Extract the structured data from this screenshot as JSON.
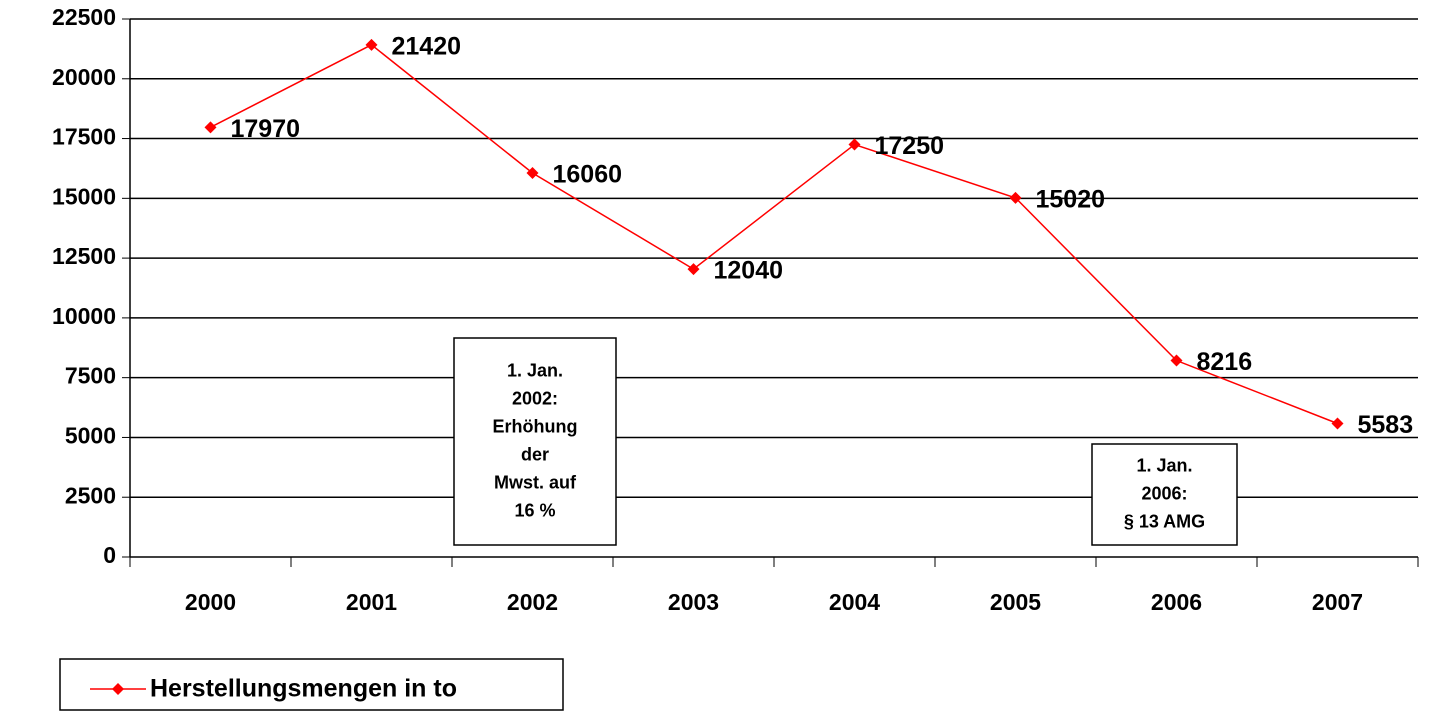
{
  "chart_data": {
    "type": "line",
    "categories": [
      "2000",
      "2001",
      "2002",
      "2003",
      "2004",
      "2005",
      "2006",
      "2007"
    ],
    "series": [
      {
        "name": "Herstellungsmengen in to",
        "color": "#ff0000",
        "values": [
          17970,
          21420,
          16060,
          12040,
          17250,
          15020,
          8216,
          5583
        ]
      }
    ],
    "ylim": [
      0,
      22500
    ],
    "yticks": [
      0,
      2500,
      5000,
      7500,
      10000,
      12500,
      15000,
      17500,
      20000,
      22500
    ],
    "grid": true,
    "legend": "bottom-left",
    "annotations": [
      {
        "lines": [
          "1. Jan.",
          "2002:",
          "Erhöhung",
          "der",
          "Mwst. auf",
          "16 %"
        ]
      },
      {
        "lines": [
          "1. Jan.",
          "2006:",
          "§ 13 AMG"
        ]
      }
    ]
  }
}
